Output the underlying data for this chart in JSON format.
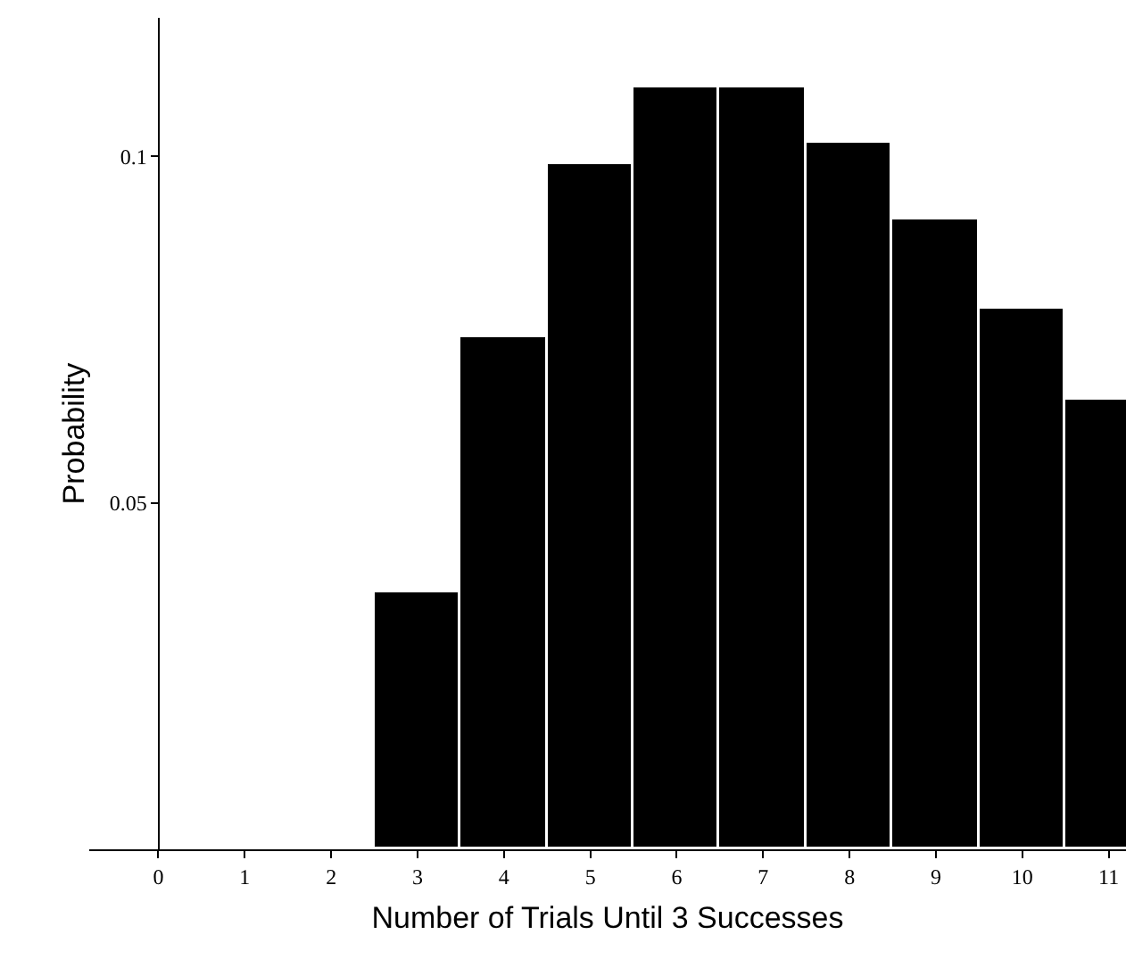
{
  "chart_data": {
    "type": "bar",
    "xlabel": "Number of Trials Until 3 Successes",
    "ylabel": "Probability",
    "x": [
      0,
      1,
      2,
      3,
      4,
      5,
      6,
      7,
      8,
      9,
      10,
      11
    ],
    "values": [
      0,
      0,
      0,
      0.037,
      0.074,
      0.099,
      0.11,
      0.11,
      0.102,
      0.091,
      0.078,
      0.065
    ],
    "color": "#000000",
    "xlim": [
      -0.8,
      11.2
    ],
    "ylim": [
      0,
      0.12
    ],
    "xticks": [
      0,
      1,
      2,
      3,
      4,
      5,
      6,
      7,
      8,
      9,
      10,
      11
    ],
    "yticks": [
      0.05,
      0.1
    ]
  }
}
